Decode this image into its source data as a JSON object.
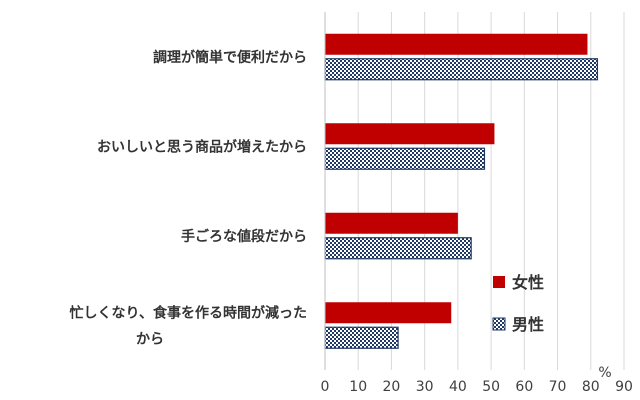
{
  "chart_data": {
    "type": "bar",
    "orientation": "horizontal",
    "categories": [
      [
        "調理が簡単で便利だから"
      ],
      [
        "おいしいと思う商品が増えたから"
      ],
      [
        "手ごろな値段だから"
      ],
      [
        "忙しくなり、食事を作る時間が減った",
        "から"
      ]
    ],
    "series": [
      {
        "name": "女性",
        "values": [
          79,
          51,
          40,
          38
        ],
        "color": "#c00000",
        "pattern": "solid"
      },
      {
        "name": "男性",
        "values": [
          82,
          48,
          44,
          22
        ],
        "color": "#1f3864",
        "pattern": "checker"
      }
    ],
    "xlim": [
      0,
      90
    ],
    "xticks": [
      0,
      10,
      20,
      30,
      40,
      50,
      60,
      70,
      80,
      90
    ],
    "unit": "%",
    "grid": "vertical",
    "legend_position": "bottom-right, inside plot"
  }
}
